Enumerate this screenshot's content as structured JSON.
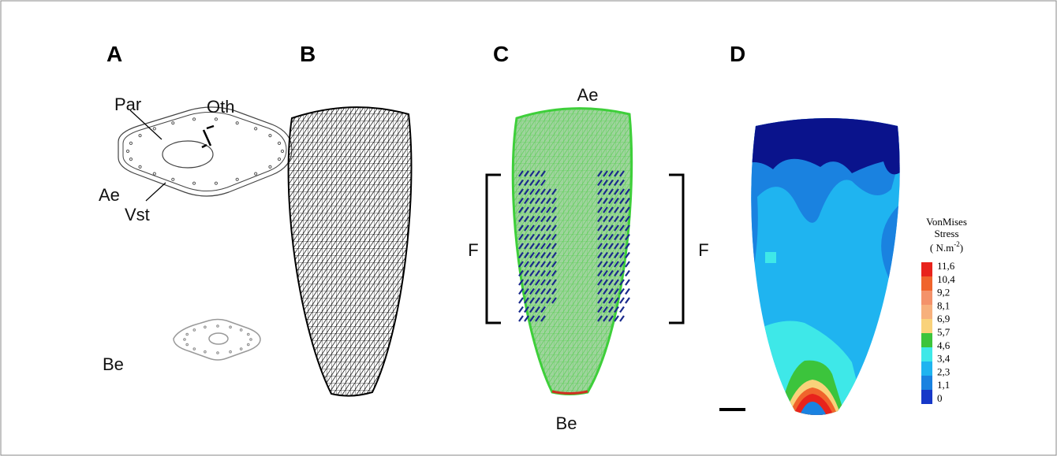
{
  "panel_labels": [
    "A",
    "B",
    "C",
    "D"
  ],
  "panel_a": {
    "labels": [
      "Par",
      "Oth",
      "Ae",
      "Vst",
      "Be"
    ]
  },
  "panel_c": {
    "top": "Ae",
    "bottom": "Be",
    "left": "F",
    "right": "F"
  },
  "legend": {
    "title": [
      "VonMises",
      "Stress"
    ],
    "unit": "( N.m",
    "unit_exponent": "-2",
    "unit_close": ")",
    "ticks": [
      "11,6",
      "10,4",
      "9,2",
      "8,1",
      "6,9",
      "5,7",
      "4,6",
      "3,4",
      "2,3",
      "1,1",
      "0"
    ],
    "colors": [
      "#e8231c",
      "#f0642c",
      "#f4926a",
      "#f7b07c",
      "#f9d27a",
      "#3cc43c",
      "#3ee8e8",
      "#1fb4f0",
      "#1a82e0",
      "#1638c8"
    ]
  }
}
